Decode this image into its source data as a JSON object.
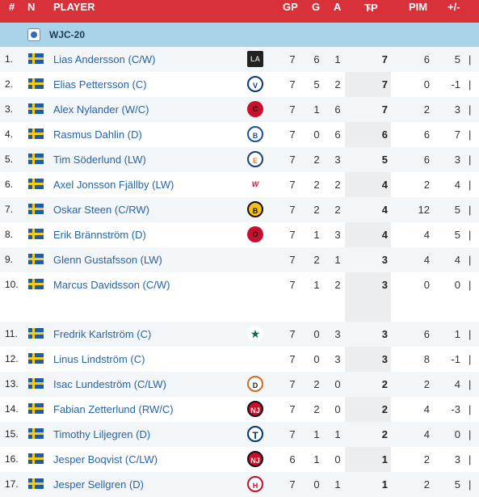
{
  "header": {
    "rank": "#",
    "nation": "N",
    "player": "PLAYER",
    "gp": "GP",
    "g": "G",
    "a": "A",
    "tp": "TP",
    "pim": "PIM",
    "pm": "+/-"
  },
  "league": {
    "name": "WJC-20"
  },
  "colors": {
    "header_bg": "#d9313a",
    "league_bg": "#a9d3e8",
    "link": "#2564a8"
  },
  "players": [
    {
      "rank": "1.",
      "name": "Lias Andersson (C/W)",
      "team_icon": "kings-logo-icon",
      "team_glyph": "LA",
      "gp": "7",
      "g": "6",
      "a": "1",
      "tp": "7",
      "pim": "6",
      "pm": "5",
      "sep": "|"
    },
    {
      "rank": "2.",
      "name": "Elias Pettersson (C)",
      "team_icon": "canucks-logo-icon",
      "team_glyph": "V",
      "gp": "7",
      "g": "5",
      "a": "2",
      "tp": "7",
      "pim": "0",
      "pm": "-1",
      "sep": "|"
    },
    {
      "rank": "3.",
      "name": "Alex Nylander (W/C)",
      "team_icon": "blackhawks-logo-icon",
      "team_glyph": "C",
      "gp": "7",
      "g": "1",
      "a": "6",
      "tp": "7",
      "pim": "2",
      "pm": "3",
      "sep": "|"
    },
    {
      "rank": "4.",
      "name": "Rasmus Dahlin (D)",
      "team_icon": "sabres-logo-icon",
      "team_glyph": "B",
      "gp": "7",
      "g": "0",
      "a": "6",
      "tp": "6",
      "pim": "6",
      "pm": "7",
      "sep": "|"
    },
    {
      "rank": "5.",
      "name": "Tim Söderlund (LW)",
      "team_icon": "oilers-logo-icon",
      "team_glyph": "E",
      "gp": "7",
      "g": "2",
      "a": "3",
      "tp": "5",
      "pim": "6",
      "pm": "3",
      "sep": "|"
    },
    {
      "rank": "6.",
      "name": "Axel Jonsson Fjällby (LW)",
      "team_icon": "capitals-logo-icon",
      "team_glyph": "W",
      "gp": "7",
      "g": "2",
      "a": "2",
      "tp": "4",
      "pim": "2",
      "pm": "4",
      "sep": "|"
    },
    {
      "rank": "7.",
      "name": "Oskar Steen (C/RW)",
      "team_icon": "bruins-logo-icon",
      "team_glyph": "B",
      "gp": "7",
      "g": "2",
      "a": "2",
      "tp": "4",
      "pim": "12",
      "pm": "5",
      "sep": "|"
    },
    {
      "rank": "8.",
      "name": "Erik Brännström (D)",
      "team_icon": "senators-logo-icon",
      "team_glyph": "O",
      "gp": "7",
      "g": "1",
      "a": "3",
      "tp": "4",
      "pim": "4",
      "pm": "5",
      "sep": "|"
    },
    {
      "rank": "9.",
      "name": "Glenn Gustafsson (LW)",
      "team_icon": "",
      "team_glyph": "",
      "gp": "7",
      "g": "2",
      "a": "1",
      "tp": "3",
      "pim": "4",
      "pm": "4",
      "sep": "|"
    },
    {
      "rank": "10.",
      "name": "Marcus Davidsson (C/W)",
      "team_icon": "",
      "team_glyph": "",
      "gp": "7",
      "g": "1",
      "a": "2",
      "tp": "3",
      "pim": "0",
      "pm": "0",
      "sep": "|"
    },
    {
      "rank": "11.",
      "name": "Fredrik Karlström (C)",
      "team_icon": "stars-logo-icon",
      "team_glyph": "★",
      "gp": "7",
      "g": "0",
      "a": "3",
      "tp": "3",
      "pim": "6",
      "pm": "1",
      "sep": "|"
    },
    {
      "rank": "12.",
      "name": "Linus Lindström (C)",
      "team_icon": "",
      "team_glyph": "",
      "gp": "7",
      "g": "0",
      "a": "3",
      "tp": "3",
      "pim": "8",
      "pm": "-1",
      "sep": "|"
    },
    {
      "rank": "13.",
      "name": "Isac Lundeström (C/LW)",
      "team_icon": "ducks-logo-icon",
      "team_glyph": "D",
      "gp": "7",
      "g": "2",
      "a": "0",
      "tp": "2",
      "pim": "2",
      "pm": "4",
      "sep": "|"
    },
    {
      "rank": "14.",
      "name": "Fabian Zetterlund (RW/C)",
      "team_icon": "devils-logo-icon",
      "team_glyph": "NJ",
      "gp": "7",
      "g": "2",
      "a": "0",
      "tp": "2",
      "pim": "4",
      "pm": "-3",
      "sep": "|"
    },
    {
      "rank": "15.",
      "name": "Timothy Liljegren (D)",
      "team_icon": "maple-leafs-logo-icon",
      "team_glyph": "T",
      "gp": "7",
      "g": "1",
      "a": "1",
      "tp": "2",
      "pim": "4",
      "pm": "0",
      "sep": "|"
    },
    {
      "rank": "16.",
      "name": "Jesper Boqvist (C/LW)",
      "team_icon": "devils-logo-icon",
      "team_glyph": "NJ",
      "gp": "6",
      "g": "1",
      "a": "0",
      "tp": "1",
      "pim": "2",
      "pm": "3",
      "sep": "|"
    },
    {
      "rank": "17.",
      "name": "Jesper Sellgren (D)",
      "team_icon": "hurricanes-logo-icon",
      "team_glyph": "H",
      "gp": "7",
      "g": "0",
      "a": "1",
      "tp": "1",
      "pim": "2",
      "pm": "5",
      "sep": "|"
    }
  ]
}
